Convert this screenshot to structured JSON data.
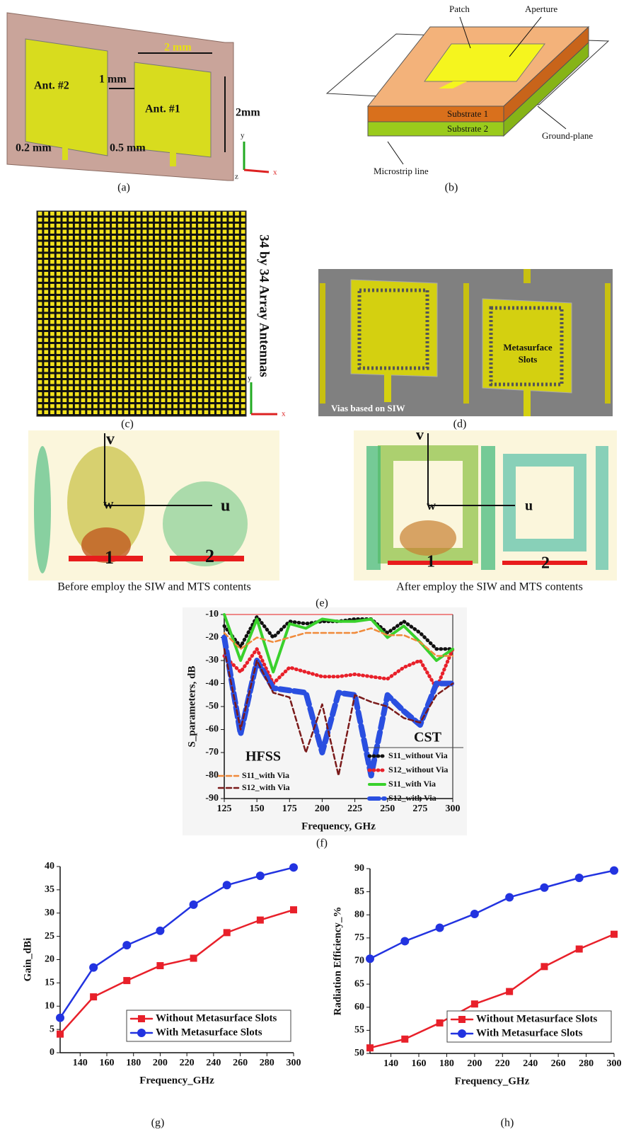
{
  "figure": {
    "panel_labels": [
      "(a)",
      "(b)",
      "(c)",
      "(d)",
      "(e)",
      "(f)",
      "(g)",
      "(h)"
    ]
  },
  "panel_a": {
    "labels": [
      "Ant. #2",
      "Ant. #1",
      "2 mm",
      "1 mm",
      "2mm",
      "0.2 mm",
      "0.5 mm"
    ],
    "axes": [
      "y",
      "z",
      "x"
    ]
  },
  "panel_b": {
    "labels": [
      "Patch",
      "Aperture",
      "Substrate 1",
      "Substrate 2",
      "Ground-plane",
      "Microstrip line"
    ]
  },
  "panel_c": {
    "title": "34 by 34 Array Antennas"
  },
  "panel_d": {
    "labels": [
      "Metasurface",
      "Slots",
      "Vias based on SIW"
    ]
  },
  "panel_e": {
    "captions": [
      "Before employ the SIW and MTS contents",
      "After employ the SIW and MTS contents"
    ],
    "markers": [
      "v",
      "w",
      "u",
      "1",
      "2"
    ]
  },
  "chart_data": [
    {
      "type": "line",
      "xlabel": "Frequency, GHz",
      "ylabel": "S_parameters, dB",
      "x": [
        125,
        137.5,
        150,
        162.5,
        175,
        187.5,
        200,
        212.5,
        225,
        237.5,
        250,
        262.5,
        275,
        287.5,
        300
      ],
      "xlim": [
        125,
        300
      ],
      "xticks": [
        125,
        150,
        175,
        200,
        225,
        250,
        275,
        300
      ],
      "ylim": [
        -90,
        -10
      ],
      "yticks": [
        -90,
        -80,
        -70,
        -60,
        -50,
        -40,
        -30,
        -20,
        -10
      ],
      "annotations": [
        "HFSS",
        "CST"
      ],
      "series": [
        {
          "name": "S11_without Via",
          "color": "#111111",
          "style": "dotted",
          "values": [
            -15,
            -24,
            -11,
            -20,
            -13,
            -14,
            -13,
            -13,
            -12,
            -12,
            -18,
            -13,
            -18,
            -25,
            -25
          ]
        },
        {
          "name": "S12_without Via",
          "color": "#e8202a",
          "style": "dotted",
          "values": [
            -28,
            -35,
            -25,
            -40,
            -33,
            -35,
            -37,
            -37,
            -36,
            -37,
            -38,
            -33,
            -30,
            -42,
            -25
          ]
        },
        {
          "name": "S11_with Via",
          "color": "#39d12c",
          "style": "solid",
          "values": [
            -10,
            -30,
            -12,
            -35,
            -14,
            -16,
            -12,
            -13,
            -13,
            -12,
            -20,
            -15,
            -22,
            -30,
            -25
          ]
        },
        {
          "name": "S12_with Via",
          "color": "#2a4fe0",
          "style": "thick",
          "values": [
            -20,
            -62,
            -30,
            -42,
            -43,
            -44,
            -70,
            -44,
            -45,
            -80,
            -45,
            -52,
            -58,
            -40,
            -40
          ]
        },
        {
          "name": "S11_with Via",
          "color": "#f08a3a",
          "style": "dashed",
          "values": [
            -18,
            -25,
            -20,
            -22,
            -20,
            -18,
            -18,
            -18,
            -18,
            -16,
            -19,
            -19,
            -22,
            -28,
            -28
          ]
        },
        {
          "name": "S12_with Via",
          "color": "#7a1a1a",
          "style": "dashed",
          "values": [
            -25,
            -60,
            -30,
            -44,
            -46,
            -70,
            -49,
            -80,
            -45,
            -48,
            -50,
            -55,
            -57,
            -45,
            -40
          ]
        }
      ]
    },
    {
      "type": "line",
      "xlabel": "Frequency_GHz",
      "ylabel": "Gain_dBi",
      "x": [
        125,
        150,
        175,
        200,
        225,
        250,
        275,
        300
      ],
      "xlim": [
        125,
        300
      ],
      "xticks": [
        140,
        160,
        180,
        200,
        220,
        240,
        260,
        280,
        300
      ],
      "ylim": [
        0,
        40
      ],
      "yticks": [
        0,
        5,
        10,
        15,
        20,
        25,
        30,
        35,
        40
      ],
      "legend": "lower right",
      "series": [
        {
          "name": "Without Metasurface Slots",
          "color": "#e8202a",
          "marker": "square",
          "values": [
            4,
            12,
            15.5,
            18.7,
            20.3,
            25.8,
            28.5,
            30.7
          ]
        },
        {
          "name": "With Metasurface Slots",
          "color": "#2233e0",
          "marker": "circle",
          "values": [
            7.5,
            18.3,
            23.1,
            26.2,
            31.8,
            36,
            38,
            39.8
          ]
        }
      ]
    },
    {
      "type": "line",
      "xlabel": "Frequency_GHz",
      "ylabel": "Radiation Efficiency_%",
      "x": [
        125,
        150,
        175,
        200,
        225,
        250,
        275,
        300
      ],
      "xlim": [
        125,
        300
      ],
      "xticks": [
        140,
        160,
        180,
        200,
        220,
        240,
        260,
        280,
        300
      ],
      "ylim": [
        50,
        90
      ],
      "yticks": [
        50,
        55,
        60,
        65,
        70,
        75,
        80,
        85,
        90
      ],
      "legend": "lower right",
      "series": [
        {
          "name": "Without Metasurface Slots",
          "color": "#e8202a",
          "marker": "square",
          "values": [
            51.2,
            53.1,
            56.6,
            60.7,
            63.4,
            68.8,
            72.6,
            75.8
          ]
        },
        {
          "name": "With Metasurface Slots",
          "color": "#2233e0",
          "marker": "circle",
          "values": [
            70.5,
            74.3,
            77.2,
            80.2,
            83.8,
            85.9,
            88,
            89.6
          ]
        }
      ]
    }
  ]
}
